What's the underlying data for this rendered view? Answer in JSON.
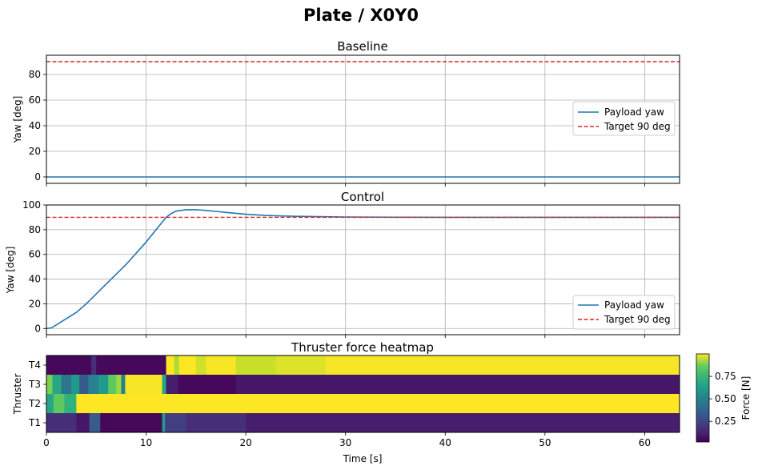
{
  "figure": {
    "title": "Plate / X0Y0"
  },
  "chart_data": [
    {
      "type": "line",
      "title": "Baseline",
      "xlabel": "",
      "ylabel": "Yaw [deg]",
      "xlim": [
        0,
        63.5
      ],
      "ylim": [
        -5,
        95
      ],
      "xticks": [
        0,
        10,
        20,
        30,
        40,
        50,
        60
      ],
      "yticks": [
        0,
        20,
        40,
        60,
        80
      ],
      "grid": true,
      "legend_position": "center-right",
      "series": [
        {
          "name": "Payload yaw",
          "color": "#1f77b4",
          "style": "solid",
          "x": [
            0,
            63.5
          ],
          "y": [
            0,
            0
          ]
        },
        {
          "name": "Target 90 deg",
          "color": "#d62728",
          "style": "dashed",
          "x": [
            0,
            63.5
          ],
          "y": [
            90,
            90
          ]
        }
      ]
    },
    {
      "type": "line",
      "title": "Control",
      "xlabel": "",
      "ylabel": "Yaw [deg]",
      "xlim": [
        0,
        63.5
      ],
      "ylim": [
        -5,
        100
      ],
      "xticks": [
        0,
        10,
        20,
        30,
        40,
        50,
        60
      ],
      "yticks": [
        0,
        20,
        40,
        60,
        80,
        100
      ],
      "grid": true,
      "legend_position": "lower-right",
      "series": [
        {
          "name": "Payload yaw",
          "color": "#1f77b4",
          "style": "solid",
          "x": [
            0,
            0.5,
            1,
            2,
            3,
            4,
            5,
            6,
            7,
            8,
            9,
            10,
            11,
            11.5,
            12,
            12.5,
            13,
            14,
            15,
            16,
            17,
            18,
            20,
            22,
            25,
            30,
            35,
            40,
            50,
            60,
            63.5
          ],
          "y": [
            0,
            0.5,
            3,
            8,
            13,
            20,
            28,
            36,
            44,
            52,
            61,
            70,
            80,
            85,
            90,
            93,
            95,
            96.2,
            96.2,
            95.6,
            94.8,
            94,
            92.5,
            91.5,
            90.8,
            90.3,
            90.1,
            90,
            90,
            90,
            90
          ]
        },
        {
          "name": "Target 90 deg",
          "color": "#d62728",
          "style": "dashed",
          "x": [
            0,
            63.5
          ],
          "y": [
            90,
            90
          ]
        }
      ]
    },
    {
      "type": "heatmap",
      "title": "Thruster force heatmap",
      "xlabel": "Time [s]",
      "ylabel": "Thruster",
      "xlim": [
        0,
        63.5
      ],
      "xticks": [
        0,
        10,
        20,
        30,
        40,
        50,
        60
      ],
      "rows": [
        "T4",
        "T3",
        "T2",
        "T1"
      ],
      "colorbar": {
        "label": "Force [N]",
        "ticks": [
          0.25,
          0.5,
          0.75
        ],
        "range": [
          0.02,
          1.0
        ],
        "colormap": "viridis"
      },
      "segments": {
        "T4": [
          [
            0,
            4.5,
            0.04
          ],
          [
            4.5,
            5.0,
            0.15
          ],
          [
            5.0,
            12.0,
            0.04
          ],
          [
            12.0,
            12.8,
            1.0
          ],
          [
            12.8,
            13.3,
            0.88
          ],
          [
            13.3,
            15,
            1.0
          ],
          [
            15,
            16,
            0.93
          ],
          [
            16,
            19,
            0.99
          ],
          [
            19,
            23,
            0.92
          ],
          [
            23,
            28,
            0.95
          ],
          [
            28,
            63.5,
            0.99
          ]
        ],
        "T3": [
          [
            0,
            0.6,
            0.8
          ],
          [
            0.6,
            1.5,
            0.6
          ],
          [
            1.5,
            2.5,
            0.4
          ],
          [
            2.5,
            3.3,
            0.55
          ],
          [
            3.3,
            4.2,
            0.3
          ],
          [
            4.2,
            5.2,
            0.45
          ],
          [
            5.2,
            6.2,
            0.55
          ],
          [
            6.2,
            7.0,
            0.75
          ],
          [
            7.0,
            7.5,
            0.85
          ],
          [
            7.5,
            7.9,
            0.45
          ],
          [
            7.9,
            11.6,
            0.99
          ],
          [
            11.6,
            12.0,
            0.6
          ],
          [
            12.0,
            13.2,
            0.1
          ],
          [
            13.2,
            19.0,
            0.04
          ],
          [
            19.0,
            63.5,
            0.08
          ]
        ],
        "T2": [
          [
            0,
            0.7,
            0.6
          ],
          [
            0.7,
            1.8,
            0.75
          ],
          [
            1.8,
            3.0,
            0.65
          ],
          [
            3.0,
            63.5,
            1.0
          ]
        ],
        "T1": [
          [
            0,
            3.0,
            0.15
          ],
          [
            3.0,
            4.3,
            0.08
          ],
          [
            4.3,
            5.4,
            0.3
          ],
          [
            5.4,
            11.6,
            0.04
          ],
          [
            11.6,
            11.9,
            0.55
          ],
          [
            11.9,
            12.3,
            0.2
          ],
          [
            12.3,
            14,
            0.2
          ],
          [
            14,
            20,
            0.15
          ],
          [
            20,
            63.5,
            0.1
          ]
        ]
      }
    }
  ]
}
